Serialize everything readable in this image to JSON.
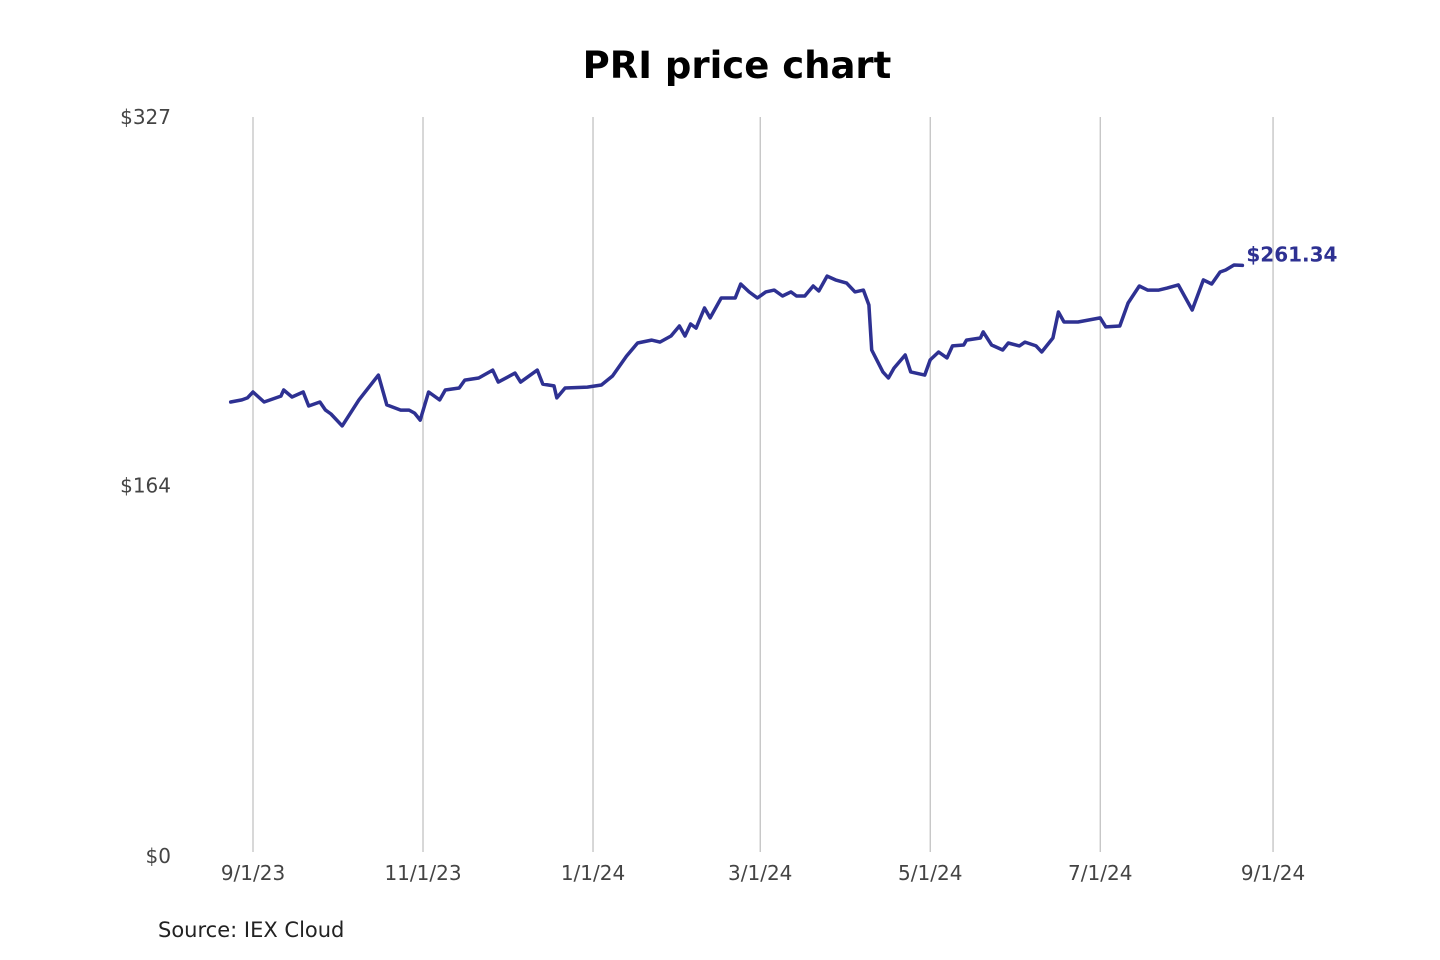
{
  "chart_data": {
    "type": "line",
    "title": "PRI price chart",
    "source": "Source: IEX Cloud",
    "line_color": "#2e3192",
    "grid": "vertical",
    "ylim": [
      0,
      327
    ],
    "y_ticks": [
      {
        "value": 0,
        "label": "$0"
      },
      {
        "value": 164,
        "label": "$164"
      },
      {
        "value": 327,
        "label": "$327"
      }
    ],
    "x_ticks": [
      {
        "date": "2023-09-01",
        "label": "9/1/23"
      },
      {
        "date": "2023-11-01",
        "label": "11/1/23"
      },
      {
        "date": "2024-01-01",
        "label": "1/1/24"
      },
      {
        "date": "2024-03-01",
        "label": "3/1/24"
      },
      {
        "date": "2024-05-01",
        "label": "5/1/24"
      },
      {
        "date": "2024-07-01",
        "label": "7/1/24"
      },
      {
        "date": "2024-09-01",
        "label": "9/1/24"
      }
    ],
    "last_label": "$261.34",
    "series": [
      {
        "points": [
          [
            "2023-08-24",
            200.9
          ],
          [
            "2023-08-28",
            201.8
          ],
          [
            "2023-08-30",
            202.7
          ],
          [
            "2023-09-01",
            205.3
          ],
          [
            "2023-09-05",
            200.9
          ],
          [
            "2023-09-11",
            203.5
          ],
          [
            "2023-09-12",
            206.2
          ],
          [
            "2023-09-15",
            203.1
          ],
          [
            "2023-09-19",
            205.3
          ],
          [
            "2023-09-21",
            199.1
          ],
          [
            "2023-09-25",
            200.9
          ],
          [
            "2023-09-27",
            197.3
          ],
          [
            "2023-09-29",
            195.6
          ],
          [
            "2023-10-03",
            190.3
          ],
          [
            "2023-10-09",
            201.8
          ],
          [
            "2023-10-16",
            212.8
          ],
          [
            "2023-10-19",
            199.6
          ],
          [
            "2023-10-24",
            197.3
          ],
          [
            "2023-10-27",
            197.3
          ],
          [
            "2023-10-29",
            196.0
          ],
          [
            "2023-10-31",
            192.9
          ],
          [
            "2023-11-03",
            205.3
          ],
          [
            "2023-11-07",
            201.8
          ],
          [
            "2023-11-09",
            206.2
          ],
          [
            "2023-11-14",
            207.1
          ],
          [
            "2023-11-16",
            210.6
          ],
          [
            "2023-11-21",
            211.5
          ],
          [
            "2023-11-26",
            215.0
          ],
          [
            "2023-11-28",
            209.7
          ],
          [
            "2023-12-04",
            213.7
          ],
          [
            "2023-12-06",
            209.7
          ],
          [
            "2023-12-12",
            215.0
          ],
          [
            "2023-12-14",
            208.8
          ],
          [
            "2023-12-18",
            208.0
          ],
          [
            "2023-12-19",
            202.7
          ],
          [
            "2023-12-22",
            207.1
          ],
          [
            "2023-12-30",
            207.5
          ],
          [
            "2024-01-04",
            208.4
          ],
          [
            "2024-01-08",
            212.4
          ],
          [
            "2024-01-13",
            221.2
          ],
          [
            "2024-01-17",
            227.0
          ],
          [
            "2024-01-22",
            228.3
          ],
          [
            "2024-01-25",
            227.4
          ],
          [
            "2024-01-29",
            230.1
          ],
          [
            "2024-02-01",
            234.5
          ],
          [
            "2024-02-03",
            230.1
          ],
          [
            "2024-02-05",
            235.4
          ],
          [
            "2024-02-07",
            233.6
          ],
          [
            "2024-02-10",
            242.5
          ],
          [
            "2024-02-12",
            238.1
          ],
          [
            "2024-02-16",
            246.9
          ],
          [
            "2024-02-21",
            246.9
          ],
          [
            "2024-02-23",
            253.1
          ],
          [
            "2024-02-26",
            249.6
          ],
          [
            "2024-02-29",
            246.9
          ],
          [
            "2024-03-03",
            249.6
          ],
          [
            "2024-03-06",
            250.4
          ],
          [
            "2024-03-09",
            247.8
          ],
          [
            "2024-03-12",
            249.6
          ],
          [
            "2024-03-14",
            247.8
          ],
          [
            "2024-03-17",
            247.8
          ],
          [
            "2024-03-20",
            252.2
          ],
          [
            "2024-03-22",
            250.0
          ],
          [
            "2024-03-25",
            256.6
          ],
          [
            "2024-03-28",
            254.9
          ],
          [
            "2024-04-01",
            253.5
          ],
          [
            "2024-04-04",
            249.6
          ],
          [
            "2024-04-07",
            250.4
          ],
          [
            "2024-04-09",
            243.8
          ],
          [
            "2024-04-10",
            223.9
          ],
          [
            "2024-04-14",
            214.2
          ],
          [
            "2024-04-16",
            211.5
          ],
          [
            "2024-04-18",
            215.9
          ],
          [
            "2024-04-22",
            221.7
          ],
          [
            "2024-04-24",
            214.2
          ],
          [
            "2024-04-29",
            212.8
          ],
          [
            "2024-05-01",
            219.5
          ],
          [
            "2024-05-04",
            223.0
          ],
          [
            "2024-05-07",
            220.4
          ],
          [
            "2024-05-09",
            225.7
          ],
          [
            "2024-05-13",
            226.1
          ],
          [
            "2024-05-14",
            228.3
          ],
          [
            "2024-05-19",
            229.2
          ],
          [
            "2024-05-20",
            231.9
          ],
          [
            "2024-05-23",
            226.1
          ],
          [
            "2024-05-27",
            223.9
          ],
          [
            "2024-05-29",
            227.0
          ],
          [
            "2024-06-02",
            225.7
          ],
          [
            "2024-06-04",
            227.4
          ],
          [
            "2024-06-08",
            225.7
          ],
          [
            "2024-06-10",
            223.0
          ],
          [
            "2024-06-14",
            229.2
          ],
          [
            "2024-06-16",
            240.7
          ],
          [
            "2024-06-18",
            236.3
          ],
          [
            "2024-06-23",
            236.3
          ],
          [
            "2024-07-01",
            238.1
          ],
          [
            "2024-07-03",
            234.1
          ],
          [
            "2024-07-08",
            234.5
          ],
          [
            "2024-07-11",
            244.7
          ],
          [
            "2024-07-15",
            252.2
          ],
          [
            "2024-07-18",
            250.4
          ],
          [
            "2024-07-22",
            250.4
          ],
          [
            "2024-07-25",
            251.3
          ],
          [
            "2024-07-29",
            252.7
          ],
          [
            "2024-08-03",
            241.6
          ],
          [
            "2024-08-07",
            254.9
          ],
          [
            "2024-08-10",
            253.1
          ],
          [
            "2024-08-13",
            258.4
          ],
          [
            "2024-08-15",
            259.3
          ],
          [
            "2024-08-18",
            261.5
          ],
          [
            "2024-08-21",
            261.34
          ]
        ]
      }
    ]
  }
}
